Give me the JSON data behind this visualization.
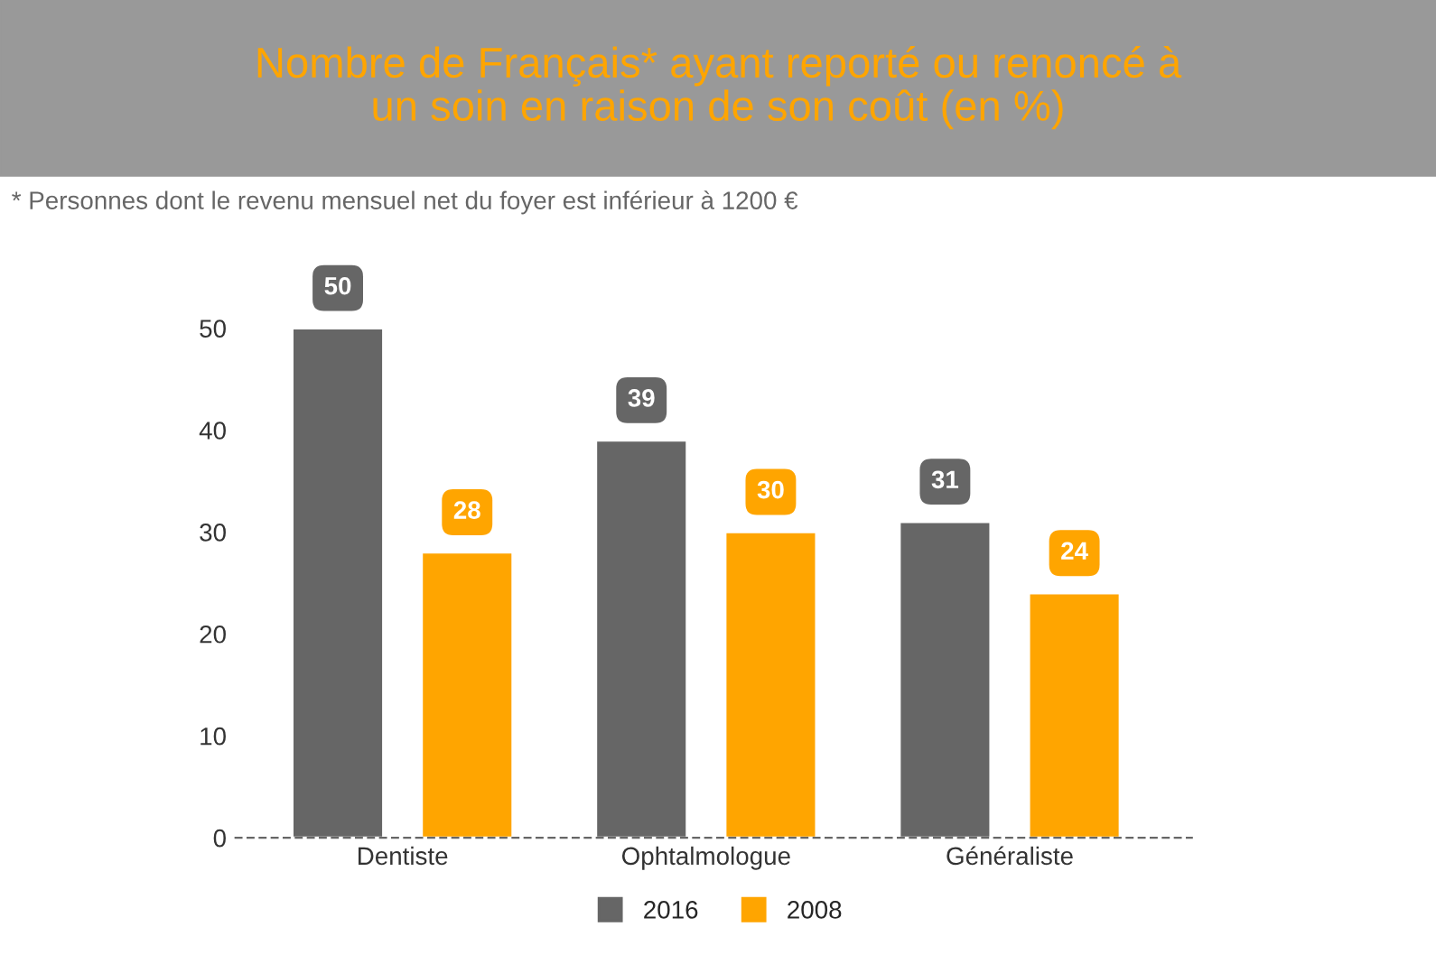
{
  "chart_data": {
    "type": "bar",
    "title": "Nombre de Français* ayant reporté ou renoncé à\nun soin en raison de son coût (en %)",
    "annotations": [
      "* Personnes dont le revenu mensuel net du foyer est inférieur à 1200 €"
    ],
    "categories": [
      "Dentiste",
      "Ophtalmologue",
      "Généraliste"
    ],
    "series": [
      {
        "name": "2016",
        "color": "#666666",
        "values": [
          50,
          39,
          31
        ]
      },
      {
        "name": "2008",
        "color": "#ffa500",
        "values": [
          28,
          30,
          24
        ]
      }
    ],
    "ylim": [
      0,
      56
    ],
    "yticks": [
      0,
      10,
      20,
      30,
      40,
      50
    ],
    "data_labels": true,
    "legend": "bottom"
  }
}
